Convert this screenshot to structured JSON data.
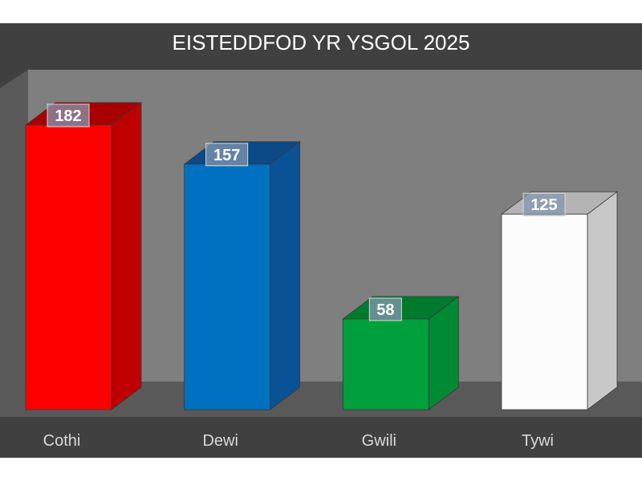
{
  "chart_data": {
    "type": "bar",
    "title": "EISTEDDFOD YR YSGOL 2025",
    "categories": [
      "Cothi",
      "Dewi",
      "Gwili",
      "Tywi"
    ],
    "values": [
      182,
      157,
      58,
      125
    ],
    "xlabel": "",
    "ylabel": "",
    "ylim": [
      0,
      200
    ],
    "grid": false,
    "legend": "none",
    "data_labels": true,
    "colors": [
      {
        "front": "#ff0000",
        "side": "#c00000",
        "top": "#a80000"
      },
      {
        "front": "#0070c0",
        "side": "#0a5296",
        "top": "#0b4a86"
      },
      {
        "front": "#00a03c",
        "side": "#008a34",
        "top": "#007a2c"
      },
      {
        "front": "#fcfcfc",
        "side": "#c8c8c8",
        "top": "#b4b4b4"
      }
    ]
  },
  "style": {
    "outer_background": "#404040",
    "wall_color": "#7f7f7f",
    "floor_color": "#595959",
    "label_box_fill": "#8497b0",
    "label_box_stroke": "#d9d9d9"
  }
}
